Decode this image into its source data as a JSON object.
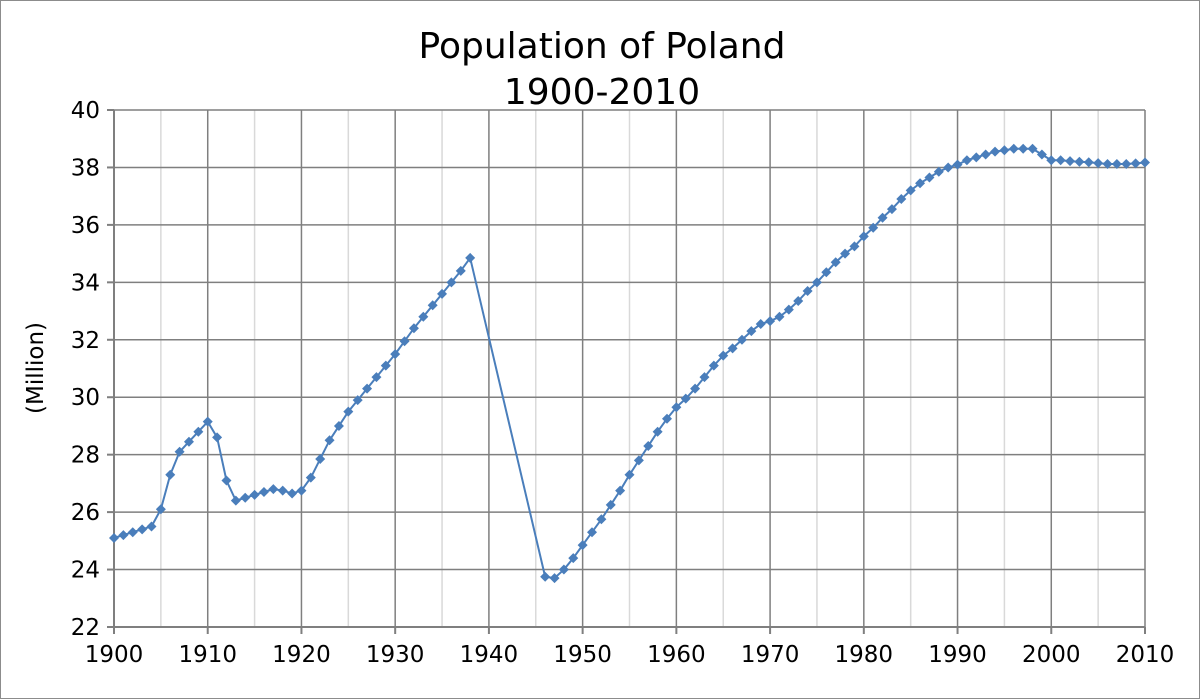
{
  "chart_data": {
    "type": "line",
    "title": "Population of Poland",
    "subtitle": "1900-2010",
    "xlabel": "",
    "ylabel": "(Million)",
    "xlim": [
      1900,
      2010
    ],
    "ylim": [
      22,
      40
    ],
    "x_ticks": [
      1900,
      1910,
      1920,
      1930,
      1940,
      1950,
      1960,
      1970,
      1980,
      1990,
      2000,
      2010
    ],
    "y_ticks": [
      22,
      24,
      26,
      28,
      30,
      32,
      34,
      36,
      38,
      40
    ],
    "grid": {
      "major_x_step": 10,
      "minor_x_step": 5,
      "major_y_step": 2,
      "major_color": "#7f7f7f",
      "minor_color": "#d9d9d9"
    },
    "legend": "none",
    "series": [
      {
        "color": "#4a7ebb",
        "marker": "diamond",
        "points": [
          [
            1900,
            25.1
          ],
          [
            1901,
            25.2
          ],
          [
            1902,
            25.3
          ],
          [
            1903,
            25.4
          ],
          [
            1904,
            25.5
          ],
          [
            1905,
            26.1
          ],
          [
            1906,
            27.3
          ],
          [
            1907,
            28.1
          ],
          [
            1908,
            28.45
          ],
          [
            1909,
            28.8
          ],
          [
            1910,
            29.15
          ],
          [
            1911,
            28.6
          ],
          [
            1912,
            27.1
          ],
          [
            1913,
            26.4
          ],
          [
            1914,
            26.5
          ],
          [
            1915,
            26.6
          ],
          [
            1916,
            26.7
          ],
          [
            1917,
            26.8
          ],
          [
            1918,
            26.75
          ],
          [
            1919,
            26.65
          ],
          [
            1920,
            26.75
          ],
          [
            1921,
            27.2
          ],
          [
            1922,
            27.85
          ],
          [
            1923,
            28.5
          ],
          [
            1924,
            29.0
          ],
          [
            1925,
            29.5
          ],
          [
            1926,
            29.9
          ],
          [
            1927,
            30.3
          ],
          [
            1928,
            30.7
          ],
          [
            1929,
            31.1
          ],
          [
            1930,
            31.5
          ],
          [
            1931,
            31.95
          ],
          [
            1932,
            32.4
          ],
          [
            1933,
            32.8
          ],
          [
            1934,
            33.2
          ],
          [
            1935,
            33.6
          ],
          [
            1936,
            34.0
          ],
          [
            1937,
            34.4
          ],
          [
            1938,
            34.85
          ],
          [
            1946,
            23.75
          ],
          [
            1947,
            23.7
          ],
          [
            1948,
            24.0
          ],
          [
            1949,
            24.4
          ],
          [
            1950,
            24.85
          ],
          [
            1951,
            25.3
          ],
          [
            1952,
            25.75
          ],
          [
            1953,
            26.25
          ],
          [
            1954,
            26.75
          ],
          [
            1955,
            27.3
          ],
          [
            1956,
            27.8
          ],
          [
            1957,
            28.3
          ],
          [
            1958,
            28.8
          ],
          [
            1959,
            29.25
          ],
          [
            1960,
            29.65
          ],
          [
            1961,
            29.95
          ],
          [
            1962,
            30.3
          ],
          [
            1963,
            30.7
          ],
          [
            1964,
            31.1
          ],
          [
            1965,
            31.45
          ],
          [
            1966,
            31.7
          ],
          [
            1967,
            32.0
          ],
          [
            1968,
            32.3
          ],
          [
            1969,
            32.55
          ],
          [
            1970,
            32.65
          ],
          [
            1971,
            32.8
          ],
          [
            1972,
            33.05
          ],
          [
            1973,
            33.35
          ],
          [
            1974,
            33.7
          ],
          [
            1975,
            34.0
          ],
          [
            1976,
            34.35
          ],
          [
            1977,
            34.7
          ],
          [
            1978,
            35.0
          ],
          [
            1979,
            35.25
          ],
          [
            1980,
            35.6
          ],
          [
            1981,
            35.9
          ],
          [
            1982,
            36.25
          ],
          [
            1983,
            36.55
          ],
          [
            1984,
            36.9
          ],
          [
            1985,
            37.2
          ],
          [
            1986,
            37.45
          ],
          [
            1987,
            37.65
          ],
          [
            1988,
            37.85
          ],
          [
            1989,
            38.0
          ],
          [
            1990,
            38.1
          ],
          [
            1991,
            38.25
          ],
          [
            1992,
            38.35
          ],
          [
            1993,
            38.45
          ],
          [
            1994,
            38.55
          ],
          [
            1995,
            38.6
          ],
          [
            1996,
            38.65
          ],
          [
            1997,
            38.65
          ],
          [
            1998,
            38.65
          ],
          [
            1999,
            38.45
          ],
          [
            2000,
            38.25
          ],
          [
            2001,
            38.25
          ],
          [
            2002,
            38.22
          ],
          [
            2003,
            38.2
          ],
          [
            2004,
            38.18
          ],
          [
            2005,
            38.15
          ],
          [
            2006,
            38.12
          ],
          [
            2007,
            38.12
          ],
          [
            2008,
            38.12
          ],
          [
            2009,
            38.14
          ],
          [
            2010,
            38.17
          ]
        ]
      }
    ]
  }
}
